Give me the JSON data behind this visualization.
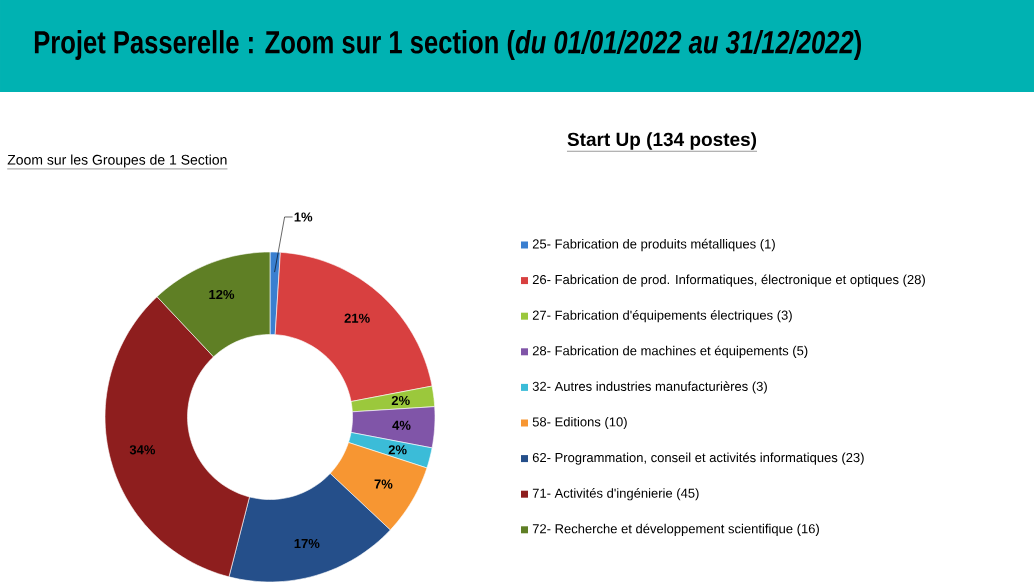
{
  "chart_data": {
    "type": "donut",
    "title": "Projet Passerelle : Zoom sur 1 section (*du 01/01/2022 au 31/12/2022*)",
    "subtitle": "Start Up (134 postes)",
    "annotations": [
      "Zoom sur les Groupes de 1 Section"
    ],
    "categories": [
      "25- Fabrication de produits métalliques (1)",
      "26- Fabrication de prod. Informatiques, électronique et optiques (28)",
      "27- Fabrication d'équipements électriques (3)",
      "28- Fabrication de machines et équipements (5)",
      "32- Autres industries manufacturières (3)",
      "58- Editions (10)",
      "62- Programmation, conseil et activités informatiques (23)",
      "71- Activités d'ingénierie (45)",
      "72- Recherche et développement scientifique (16)"
    ],
    "values": [
      1,
      21,
      2,
      4,
      2,
      7,
      17,
      34,
      12
    ],
    "value_labels": [
      "1%",
      "21%",
      "2%",
      "4%",
      "2%",
      "7%",
      "17%",
      "34%",
      "12%"
    ],
    "colors": [
      "#3a7fd0",
      "#d84040",
      "#9bc83c",
      "#8055a8",
      "#3bbcd8",
      "#f79632",
      "#254f8a",
      "#8e1e1e",
      "#5f7f25"
    ],
    "legend": "right"
  }
}
